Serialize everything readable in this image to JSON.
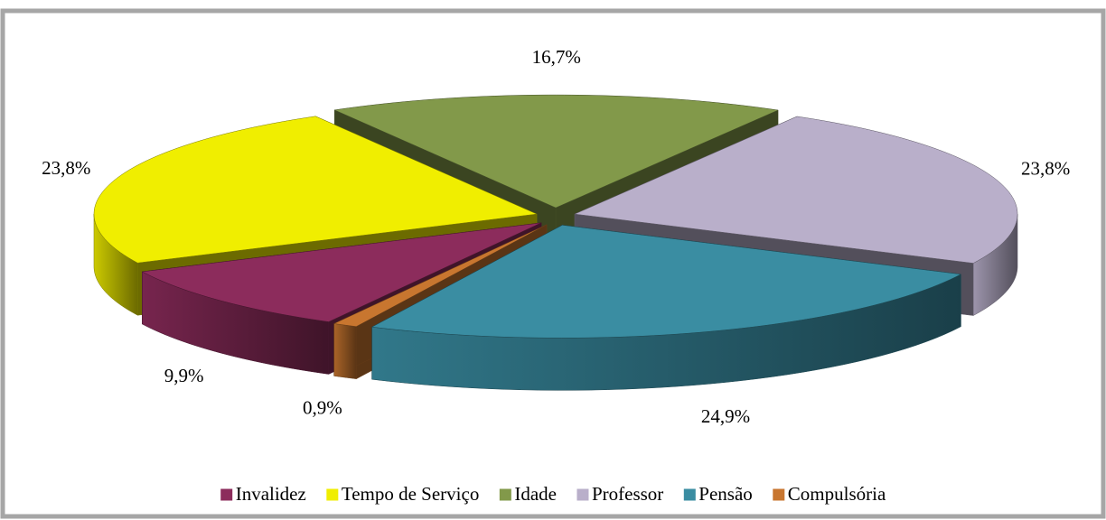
{
  "chart_data": {
    "type": "pie3d",
    "series": [
      {
        "name": "Invalidez",
        "color": "#8c2c5c",
        "values": [
          9.9
        ],
        "value_labels": [
          "9,9%"
        ]
      },
      {
        "name": "Tempo de Serviço",
        "color": "#f0ee00",
        "values": [
          23.8
        ],
        "value_labels": [
          "23,8%"
        ]
      },
      {
        "name": "Idade",
        "color": "#82994a",
        "values": [
          16.7
        ],
        "value_labels": [
          "16,7%"
        ]
      },
      {
        "name": "Professor",
        "color": "#b9afca",
        "values": [
          23.8
        ],
        "value_labels": [
          "23,8%"
        ]
      },
      {
        "name": "Pensão",
        "color": "#3a8da2",
        "values": [
          24.9
        ],
        "value_labels": [
          "24,9%"
        ]
      },
      {
        "name": "Compulsória",
        "color": "#c8762f",
        "values": [
          0.9
        ],
        "value_labels": [
          "0,9%"
        ]
      }
    ],
    "legend": "bottom"
  }
}
